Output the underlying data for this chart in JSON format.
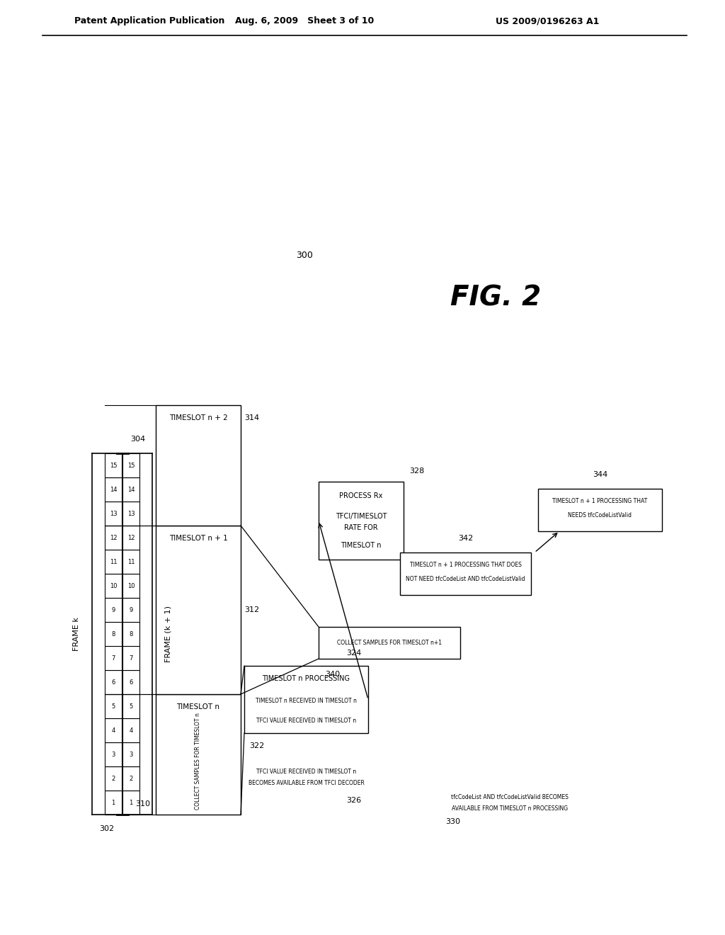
{
  "bg_color": "#ffffff",
  "header_left": "Patent Application Publication",
  "header_mid": "Aug. 6, 2009   Sheet 3 of 10",
  "header_right": "US 2009/0196263 A1",
  "fig_label": "FIG. 2",
  "frame_k_label": "FRAME k",
  "frame_k1_label": "FRAME (k + 1)",
  "frame_k_ref": "302",
  "frame_k1_ref": "304",
  "slots_frame_k": [
    "1",
    "2",
    "3",
    "4",
    "5",
    "6",
    "7",
    "8",
    "9",
    "10",
    "11",
    "12",
    "13",
    "14",
    "15"
  ],
  "slots_frame_k1": [
    "1",
    "2",
    "3",
    "4",
    "5",
    "6",
    "7",
    "8",
    "9",
    "10",
    "11",
    "12",
    "13",
    "14",
    "15"
  ],
  "ref_300": "300",
  "ref_310": "310",
  "ref_312": "312",
  "ref_314": "314",
  "ref_322": "322",
  "ref_324": "324",
  "ref_326": "326",
  "ref_328": "328",
  "ref_330": "330",
  "ref_340": "340",
  "ref_342": "342",
  "ref_344": "344",
  "box_timeslot_n": "TIMESLOT n",
  "box_collect_n": "COLLECT SAMPLES FOR TIMESLOT n",
  "box_timeslot_n1": "TIMESLOT n + 1",
  "box_timeslot_n2": "TIMESLOT n + 2",
  "box_processing_n_title": "TIMESLOT n PROCESSING",
  "box_processing_n_sub1": "TIMESLOT n RECEIVED IN TIMESLOT n",
  "box_processing_n_sub2": "TFCI VALUE RECEIVED IN TIMESLOT n",
  "box_processing_n_sub3": "BECOMES AVAILABLE FROM TFCI DECODER",
  "box_process_rx_1": "PROCESS Rx",
  "box_process_rx_2": "TFCI/TIMESLOT",
  "box_process_rx_3": "RATE FOR",
  "box_process_rx_4": "TIMESLOT n",
  "label_326a": "TFCI VALUE RECEIVED IN TIMESLOT n",
  "label_326b": "BECOMES AVAILABLE FROM TFCI DECODER",
  "label_330a": "tfcCodeList AND tfcCodeListValid BECOMES",
  "label_330b": "AVAILABLE FROM TIMESLOT n PROCESSING",
  "box_collect_n1": "COLLECT SAMPLES FOR TIMESLOT n+1",
  "box_342a": "TIMESLOT n + 1 PROCESSING THAT DOES",
  "box_342b": "NOT NEED tfcCodeList AND tfcCodeListValid",
  "box_344a": "TIMESLOT n + 1 PROCESSING THAT",
  "box_344b": "NEEDS tfcCodeListValid"
}
